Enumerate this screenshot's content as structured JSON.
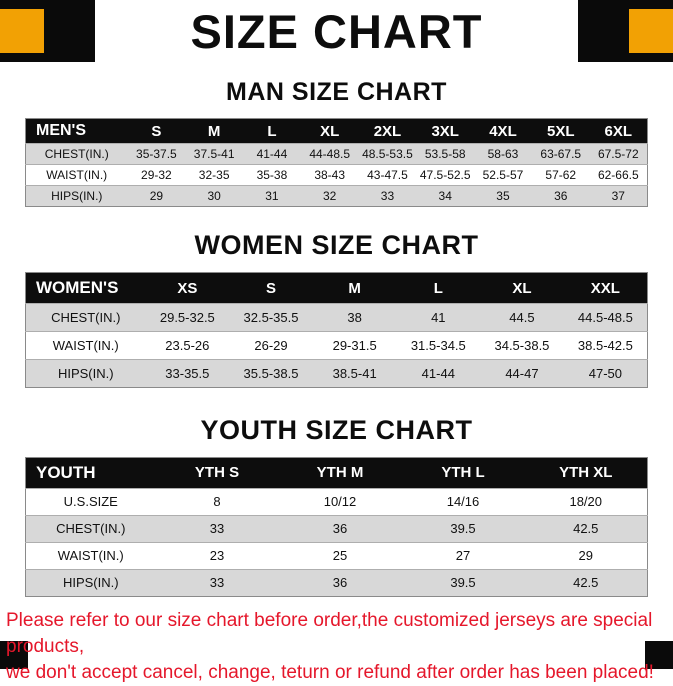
{
  "colors": {
    "orange": "#F2A104",
    "header_black": "#0d0d0d",
    "row_gray": "#d8d8d8",
    "notice_red": "#E5172B"
  },
  "page": {
    "title": "SIZE CHART"
  },
  "tables": [
    {
      "heading": "MAN SIZE CHART",
      "header": [
        "MEN'S",
        "S",
        "M",
        "L",
        "XL",
        "2XL",
        "3XL",
        "4XL",
        "5XL",
        "6XL"
      ],
      "rows": [
        [
          "CHEST(IN.)",
          "35-37.5",
          "37.5-41",
          "41-44",
          "44-48.5",
          "48.5-53.5",
          "53.5-58",
          "58-63",
          "63-67.5",
          "67.5-72"
        ],
        [
          "WAIST(IN.)",
          "29-32",
          "32-35",
          "35-38",
          "38-43",
          "43-47.5",
          "47.5-52.5",
          "52.5-57",
          "57-62",
          "62-66.5"
        ],
        [
          "HIPS(IN.)",
          "29",
          "30",
          "31",
          "32",
          "33",
          "34",
          "35",
          "36",
          "37"
        ]
      ]
    },
    {
      "heading": "WOMEN SIZE CHART",
      "header": [
        "WOMEN'S",
        "XS",
        "S",
        "M",
        "L",
        "XL",
        "XXL"
      ],
      "rows": [
        [
          "CHEST(IN.)",
          "29.5-32.5",
          "32.5-35.5",
          "38",
          "41",
          "44.5",
          "44.5-48.5"
        ],
        [
          "WAIST(IN.)",
          "23.5-26",
          "26-29",
          "29-31.5",
          "31.5-34.5",
          "34.5-38.5",
          "38.5-42.5"
        ],
        [
          "HIPS(IN.)",
          "33-35.5",
          "35.5-38.5",
          "38.5-41",
          "41-44",
          "44-47",
          "47-50"
        ]
      ]
    },
    {
      "heading": "YOUTH SIZE CHART",
      "header": [
        "YOUTH",
        "YTH S",
        "YTH M",
        "YTH L",
        "YTH XL"
      ],
      "rows": [
        [
          "U.S.SIZE",
          "8",
          "10/12",
          "14/16",
          "18/20"
        ],
        [
          "CHEST(IN.)",
          "33",
          "36",
          "39.5",
          "42.5"
        ],
        [
          "WAIST(IN.)",
          "23",
          "25",
          "27",
          "29"
        ],
        [
          "HIPS(IN.)",
          "33",
          "36",
          "39.5",
          "42.5"
        ]
      ]
    }
  ],
  "footer": {
    "line1": "Please refer to our size chart before order,the customized jerseys are special products,",
    "line2": "we don't accept cancel, change, teturn or refund after order has been placed!"
  }
}
